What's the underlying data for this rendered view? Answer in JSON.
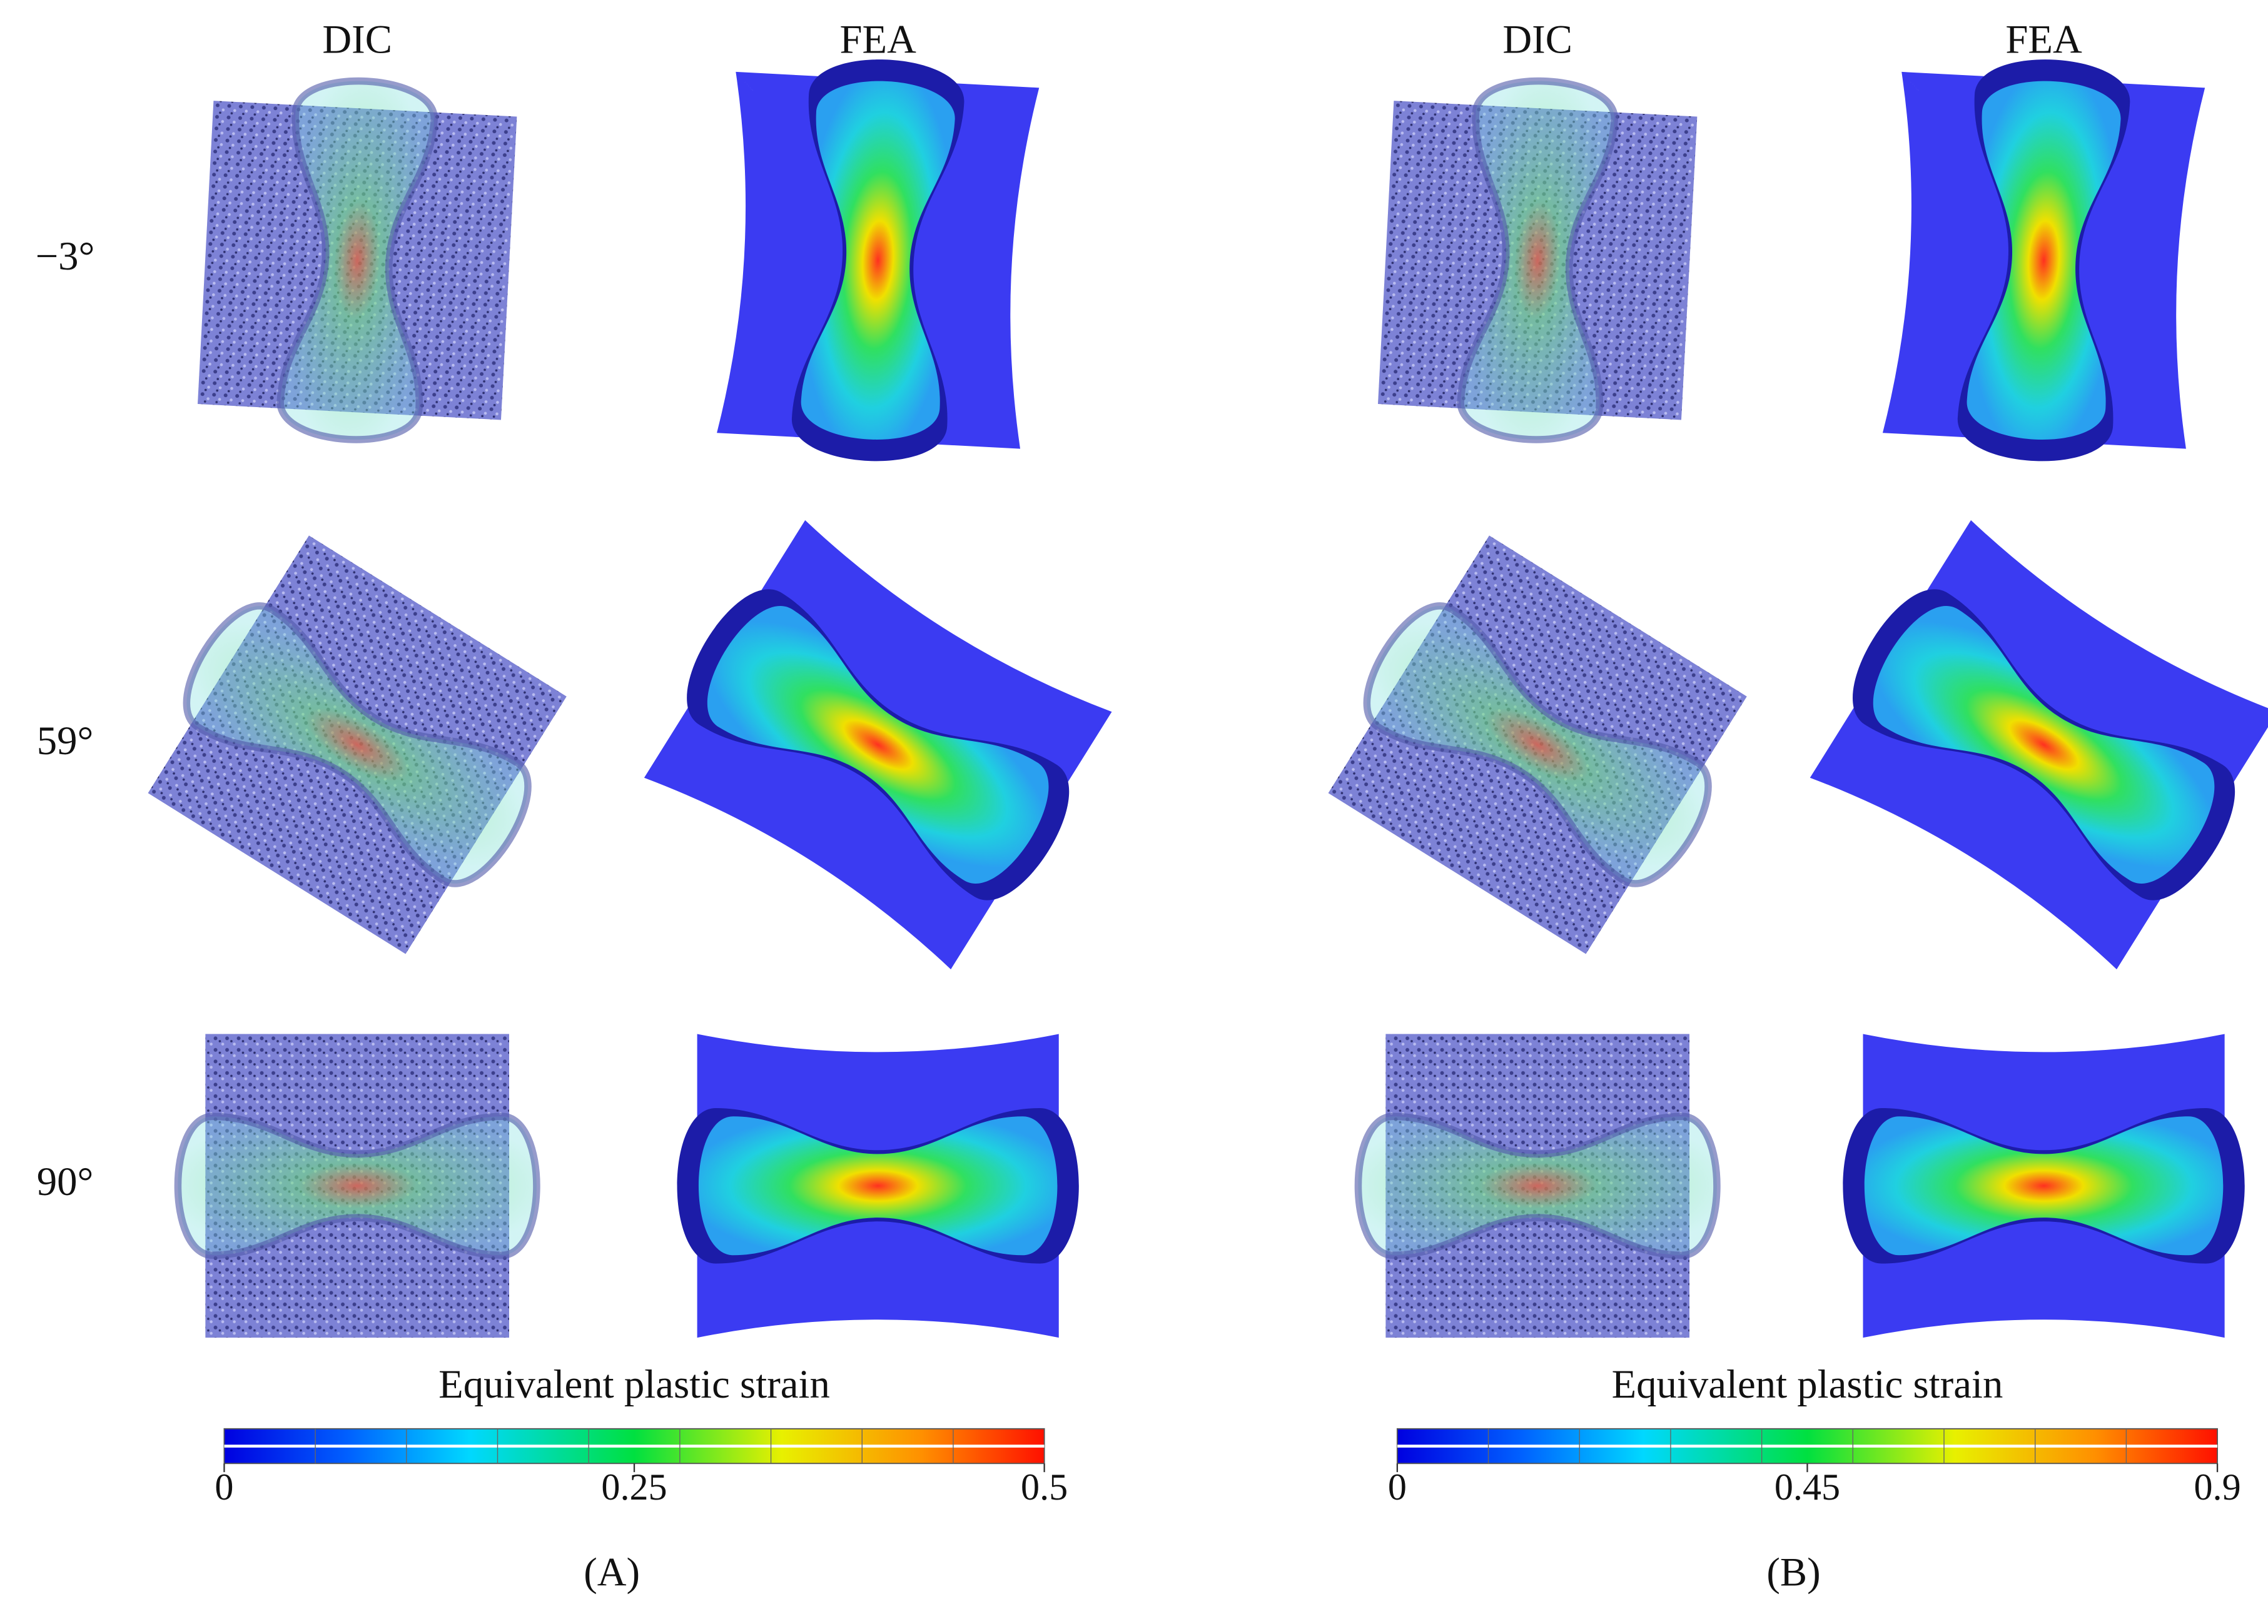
{
  "columns": [
    "DIC",
    "FEA",
    "DIC",
    "FEA"
  ],
  "rows": [
    "−3°",
    "59°",
    "90°"
  ],
  "panels": [
    {
      "label": "(A)",
      "colorbar": {
        "title": "Equivalent plastic strain",
        "range": [
          0,
          0.5
        ],
        "ticks": [
          0,
          0.25,
          0.5
        ]
      }
    },
    {
      "label": "(B)",
      "colorbar": {
        "title": "Equivalent plastic strain",
        "range": [
          0,
          0.9
        ],
        "ticks": [
          0,
          0.45,
          0.9
        ]
      }
    }
  ]
}
